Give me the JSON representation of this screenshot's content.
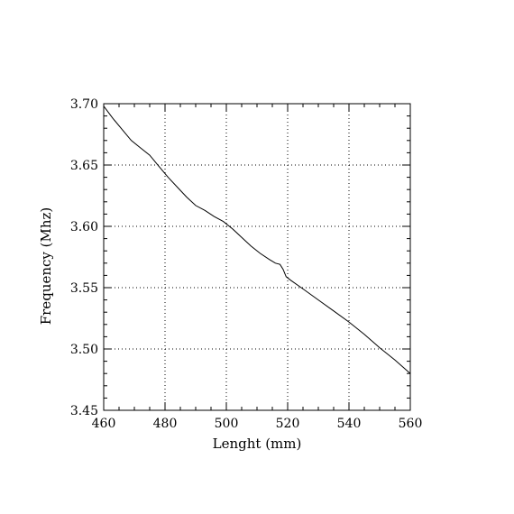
{
  "chart_data": {
    "type": "line",
    "title": "",
    "xlabel": "Lenght (mm)",
    "ylabel": "Frequency (Mhz)",
    "xlim": [
      460,
      560
    ],
    "ylim": [
      3.45,
      3.7
    ],
    "x_ticks": [
      "460",
      "480",
      "500",
      "520",
      "540",
      "560"
    ],
    "y_ticks": [
      "3.45",
      "3.50",
      "3.55",
      "3.60",
      "3.65",
      "3.70"
    ],
    "grid": true,
    "grid_style": "dotted",
    "x_minor_per_major": 4,
    "y_minor_per_major": 5,
    "series": [
      {
        "x": [
          460,
          463,
          466,
          469,
          472,
          475,
          478,
          481,
          484,
          487,
          490,
          493,
          496,
          499,
          502,
          505,
          508,
          511,
          514,
          516,
          517.5,
          518.5,
          519.5,
          521,
          525,
          530,
          535,
          540,
          545,
          550,
          555,
          560
        ],
        "y": [
          3.698,
          3.688,
          3.679,
          3.67,
          3.664,
          3.658,
          3.649,
          3.64,
          3.632,
          3.624,
          3.617,
          3.613,
          3.608,
          3.604,
          3.598,
          3.591,
          3.584,
          3.578,
          3.573,
          3.57,
          3.569,
          3.565,
          3.559,
          3.556,
          3.549,
          3.54,
          3.531,
          3.522,
          3.512,
          3.501,
          3.491,
          3.48
        ],
        "color": "#000000"
      }
    ]
  }
}
